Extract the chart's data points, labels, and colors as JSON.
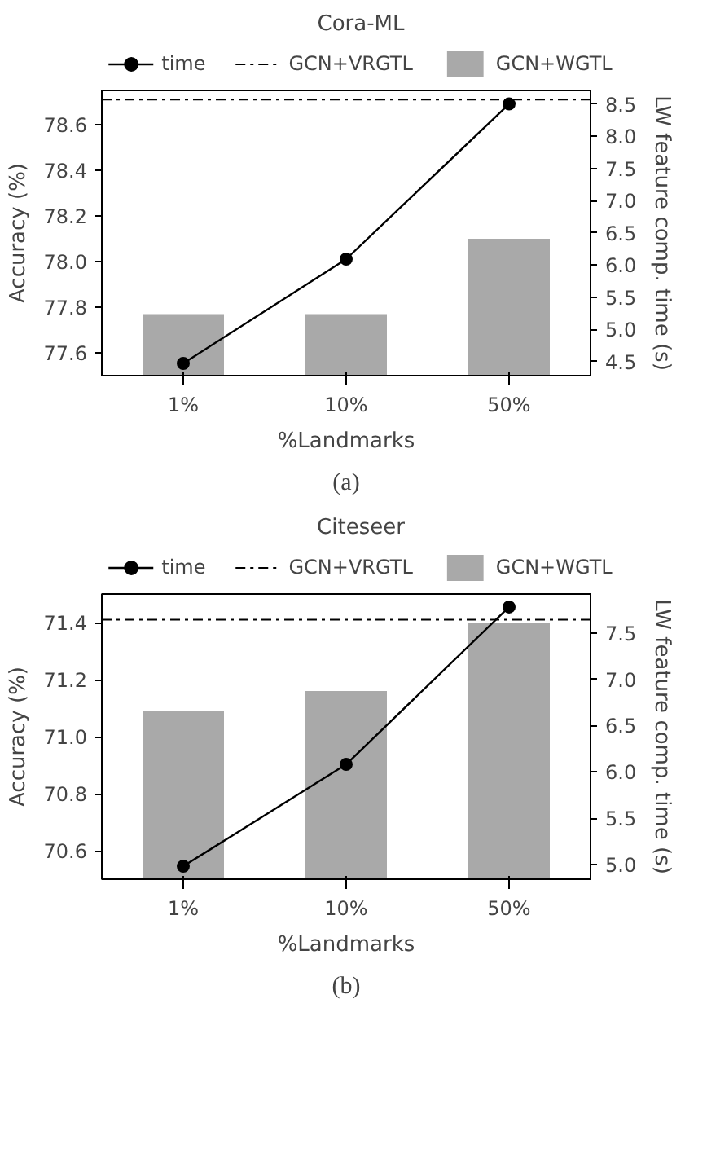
{
  "chart_data": [
    {
      "type": "bar",
      "title": "Cora-ML",
      "xlabel": "%Landmarks",
      "ylabel": "Accuracy (%)",
      "y2label": "LW feature comp. time (s)",
      "categories": [
        "1%",
        "10%",
        "50%"
      ],
      "series": [
        {
          "name": "time",
          "type": "line",
          "axis": "y2",
          "color": "#000000",
          "marker": "circle",
          "values": [
            4.47,
            6.09,
            8.5
          ]
        },
        {
          "name": "GCN+WGTL",
          "color": "#a9a9a9",
          "values": [
            77.77,
            77.77,
            78.1
          ]
        }
      ],
      "ref_lines": [
        {
          "axis": "y",
          "value": 78.71,
          "label": "GCN+VRGTL",
          "color": "#000000",
          "line_style": "dashdot"
        }
      ],
      "ylim": [
        77.5,
        78.75
      ],
      "yticks": [
        {
          "value": 77.6,
          "label": "77.6"
        },
        {
          "value": 77.8,
          "label": "77.8"
        },
        {
          "value": 78.0,
          "label": "78.0"
        },
        {
          "value": 78.2,
          "label": "78.2"
        },
        {
          "value": 78.4,
          "label": "78.4"
        },
        {
          "value": 78.6,
          "label": "78.6"
        }
      ],
      "y2lim": [
        4.28,
        8.71
      ],
      "y2ticks": [
        {
          "value": 4.5,
          "label": "4.5"
        },
        {
          "value": 5.0,
          "label": "5.0"
        },
        {
          "value": 5.5,
          "label": "5.5"
        },
        {
          "value": 6.0,
          "label": "6.0"
        },
        {
          "value": 6.5,
          "label": "6.5"
        },
        {
          "value": 7.0,
          "label": "7.0"
        },
        {
          "value": 7.5,
          "label": "7.5"
        },
        {
          "value": 8.0,
          "label": "8.0"
        },
        {
          "value": 8.5,
          "label": "8.5"
        }
      ],
      "legend": "top",
      "grid": false,
      "annotations": [
        "(a)"
      ]
    },
    {
      "type": "bar",
      "title": "Citeseer",
      "xlabel": "%Landmarks",
      "ylabel": "Accuracy (%)",
      "y2label": "LW feature comp. time (s)",
      "categories": [
        "1%",
        "10%",
        "50%"
      ],
      "series": [
        {
          "name": "time",
          "type": "line",
          "axis": "y2",
          "color": "#000000",
          "marker": "circle",
          "values": [
            4.98,
            6.08,
            7.78
          ]
        },
        {
          "name": "GCN+WGTL",
          "color": "#a9a9a9",
          "values": [
            71.09,
            71.16,
            71.4
          ]
        }
      ],
      "ref_lines": [
        {
          "axis": "y",
          "value": 71.41,
          "label": "GCN+VRGTL",
          "color": "#000000",
          "line_style": "dashdot"
        }
      ],
      "ylim": [
        70.5,
        71.5
      ],
      "yticks": [
        {
          "value": 70.6,
          "label": "70.6"
        },
        {
          "value": 70.8,
          "label": "70.8"
        },
        {
          "value": 71.0,
          "label": "71.0"
        },
        {
          "value": 71.2,
          "label": "71.2"
        },
        {
          "value": 71.4,
          "label": "71.4"
        }
      ],
      "y2lim": [
        4.84,
        7.92
      ],
      "y2ticks": [
        {
          "value": 5.0,
          "label": "5.0"
        },
        {
          "value": 5.5,
          "label": "5.5"
        },
        {
          "value": 6.0,
          "label": "6.0"
        },
        {
          "value": 6.5,
          "label": "6.5"
        },
        {
          "value": 7.0,
          "label": "7.0"
        },
        {
          "value": 7.5,
          "label": "7.5"
        }
      ],
      "legend": "top",
      "grid": false,
      "annotations": [
        "(b)"
      ]
    }
  ]
}
